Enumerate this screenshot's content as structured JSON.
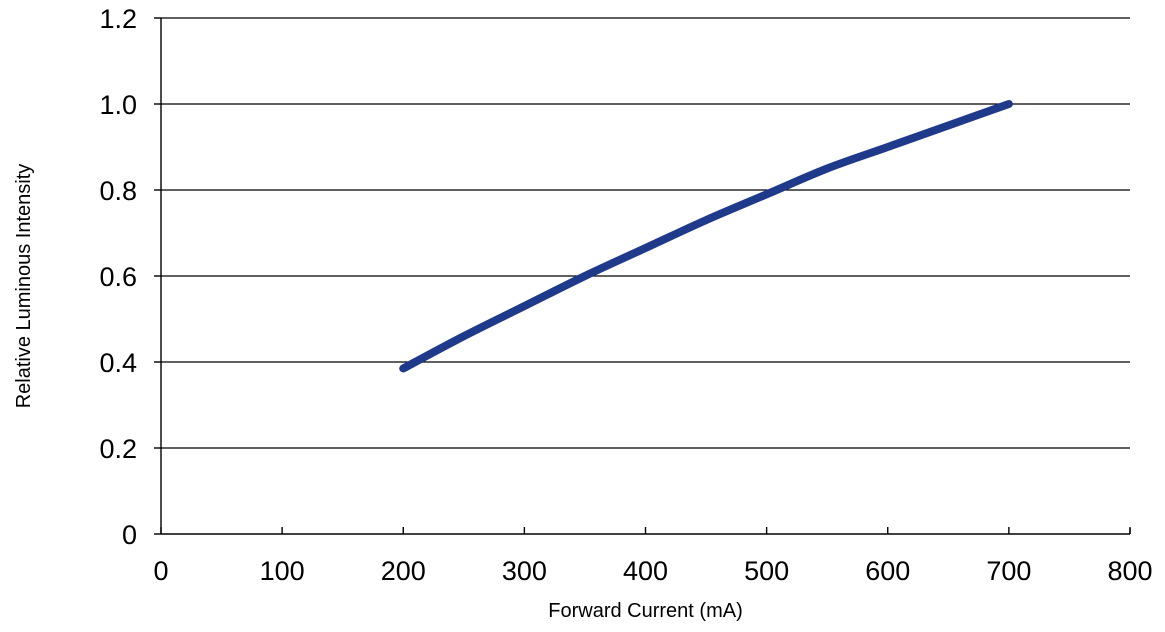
{
  "chart_data": {
    "type": "line",
    "title": "",
    "xlabel": "Forward Current (mA)",
    "ylabel": "Relative Luminous Intensity",
    "xlim": [
      0,
      800
    ],
    "ylim": [
      0,
      1.2
    ],
    "x_ticks": [
      0,
      100,
      200,
      300,
      400,
      500,
      600,
      700,
      800
    ],
    "x_tick_labels": [
      "0",
      "100",
      "200",
      "300",
      "400",
      "500",
      "600",
      "700",
      "800"
    ],
    "y_ticks": [
      0,
      0.2,
      0.4,
      0.6,
      0.8,
      1.0,
      1.2
    ],
    "y_tick_labels": [
      "0",
      "0.2",
      "0.4",
      "0.6",
      "0.8",
      "1.0",
      "1.2"
    ],
    "grid": "horizontal",
    "series": [
      {
        "color": "#1f3a8a",
        "x": [
          200,
          250,
          300,
          350,
          400,
          450,
          500,
          550,
          600,
          650,
          700
        ],
        "y": [
          0.385,
          0.46,
          0.53,
          0.6,
          0.665,
          0.73,
          0.79,
          0.85,
          0.9,
          0.95,
          1.0
        ]
      }
    ]
  }
}
